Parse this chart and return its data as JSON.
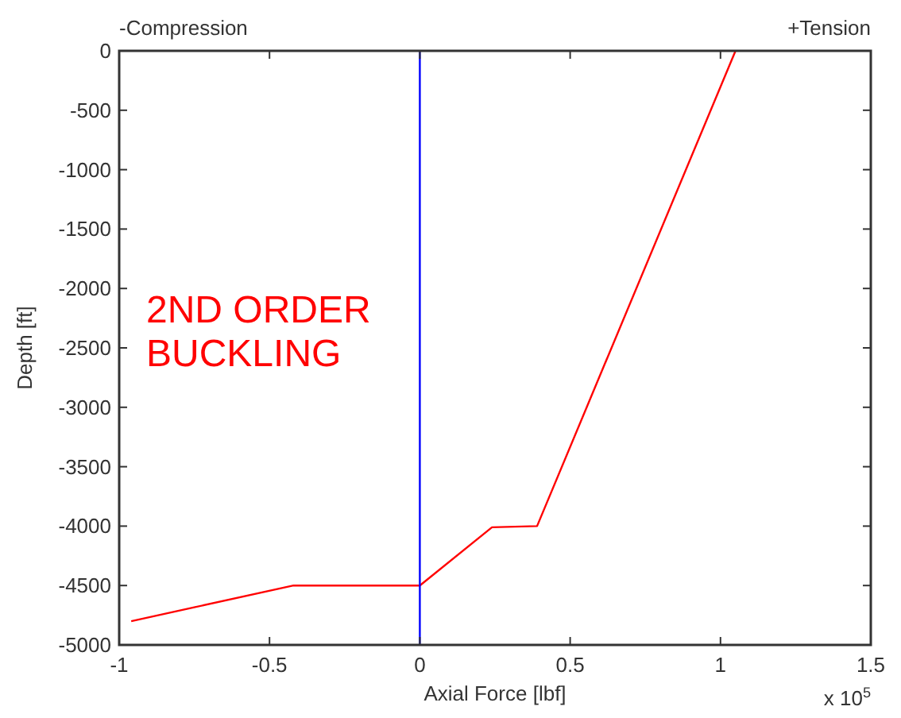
{
  "chart_data": {
    "type": "line",
    "xlabel": "Axial Force [lbf]",
    "ylabel": "Depth [ft]",
    "x": [
      -0.96,
      -0.42,
      0,
      0.24,
      0.39,
      1.05
    ],
    "series": [
      {
        "color": "#ff0000",
        "values": [
          -4800,
          -4500,
          -4500,
          -4010,
          -4000,
          0
        ]
      }
    ],
    "xlim": [
      -1,
      1.5
    ],
    "xticks": [
      -1,
      -0.5,
      0,
      0.5,
      1,
      1.5
    ],
    "ylim": [
      -5000,
      0
    ],
    "yticks": [
      -5000,
      -4500,
      -4000,
      -3500,
      -3000,
      -2500,
      -2000,
      -1500,
      -1000,
      -500,
      0
    ],
    "ref_lines": [
      {
        "axis": "x",
        "value": 0,
        "color": "#0000ff"
      }
    ],
    "annotations": [
      "-Compression",
      "+Tension",
      "2ND ORDER BUCKLING",
      "x 10$^{5}$"
    ],
    "grid": false,
    "marker": "none",
    "line_style": "solid"
  }
}
